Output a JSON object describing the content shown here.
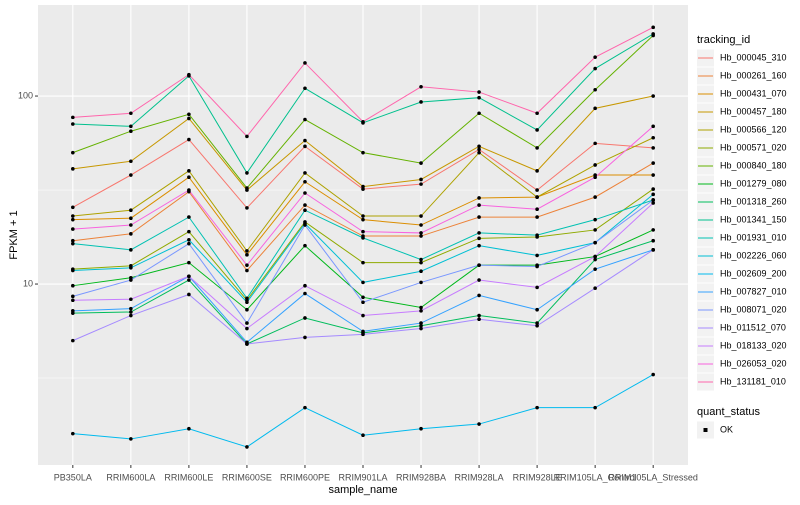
{
  "chart_data": {
    "type": "line",
    "log_y": true,
    "grid": true,
    "x_label": "sample_name",
    "y_label": "FPKM + 1",
    "legend_title": "tracking_id",
    "shape_legend": {
      "title": "quant_status",
      "labels": [
        "OK"
      ]
    },
    "categories": [
      "PB350LA",
      "RRIM600LA",
      "RRIM600LE",
      "RRIM600SE",
      "RRIM600PE",
      "RRIM901LA",
      "RRIM928BA",
      "RRIM928LA",
      "RRIM928LE",
      "RRIM105LA_Control",
      "RRIM105LA_Stressed"
    ],
    "ylim": [
      1.09,
      305
    ],
    "yticks": [
      10,
      100
    ],
    "series": [
      {
        "name": "Hb_000045_310",
        "color": "#F8766D",
        "values": [
          25.6,
          38,
          58.7,
          25.4,
          54,
          32,
          34,
          52,
          31.6,
          56,
          53
        ]
      },
      {
        "name": "Hb_000261_160",
        "color": "#EC8239",
        "values": [
          17,
          18.5,
          31,
          11.8,
          26.3,
          18,
          18,
          22.7,
          22.7,
          29,
          44
        ]
      },
      {
        "name": "Hb_000431_070",
        "color": "#DB8E00",
        "values": [
          22,
          22.4,
          37,
          14.3,
          35,
          22,
          20.6,
          28.7,
          29,
          38,
          38
        ]
      },
      {
        "name": "Hb_000457_180",
        "color": "#C79800",
        "values": [
          41,
          45,
          76,
          31.6,
          58,
          33,
          36,
          54,
          40,
          86,
          100
        ]
      },
      {
        "name": "Hb_000566_120",
        "color": "#AEA200",
        "values": [
          23,
          24.7,
          40,
          15,
          39,
          23,
          23,
          50,
          29,
          43,
          60
        ]
      },
      {
        "name": "Hb_000571_020",
        "color": "#8FAA00",
        "values": [
          12,
          12.5,
          19,
          8.2,
          21.4,
          13,
          13,
          17.5,
          17.8,
          19.4,
          32
        ]
      },
      {
        "name": "Hb_000840_180",
        "color": "#64B200",
        "values": [
          50,
          65,
          80,
          32.4,
          75,
          50,
          44,
          81,
          53,
          108,
          210
        ]
      },
      {
        "name": "Hb_001279_080",
        "color": "#00B81B",
        "values": [
          9.8,
          10.8,
          13,
          7.3,
          16,
          8.5,
          7.5,
          12.6,
          12.6,
          14,
          19.4
        ]
      },
      {
        "name": "Hb_001318_260",
        "color": "#00BD5C",
        "values": [
          7,
          7.1,
          10.5,
          4.8,
          6.6,
          5.5,
          6,
          6.8,
          6.2,
          13.5,
          17
        ]
      },
      {
        "name": "Hb_001341_150",
        "color": "#00C08D",
        "values": [
          71,
          69,
          128,
          39,
          110,
          72,
          93,
          98,
          66,
          140,
          214
        ]
      },
      {
        "name": "Hb_001931_010",
        "color": "#00C1B2",
        "values": [
          16.4,
          15.2,
          22.7,
          8.4,
          24.7,
          17.6,
          13.5,
          18.7,
          18.2,
          22,
          28
        ]
      },
      {
        "name": "Hb_002226_060",
        "color": "#00BFD4",
        "values": [
          11.8,
          12.2,
          17.2,
          8,
          21,
          10.2,
          11.7,
          16,
          14.2,
          16.6,
          30
        ]
      },
      {
        "name": "Hb_002609_200",
        "color": "#00BAEE",
        "values": [
          1.6,
          1.5,
          1.7,
          1.36,
          2.2,
          1.57,
          1.7,
          1.8,
          2.2,
          2.2,
          3.3
        ]
      },
      {
        "name": "Hb_007827_010",
        "color": "#35A2FF",
        "values": [
          7.2,
          7.4,
          11,
          4.9,
          8.9,
          5.6,
          6.2,
          8.7,
          7.3,
          12,
          15.2
        ]
      },
      {
        "name": "Hb_008071_020",
        "color": "#7997FF",
        "values": [
          8.6,
          10.5,
          16.4,
          6.2,
          20.6,
          8,
          10.2,
          12.6,
          12.4,
          16.6,
          28
        ]
      },
      {
        "name": "Hb_011512_070",
        "color": "#A58AFF",
        "values": [
          5,
          6.8,
          8.8,
          4.8,
          5.2,
          5.4,
          5.8,
          6.5,
          6,
          9.5,
          15.2
        ]
      },
      {
        "name": "Hb_018133_020",
        "color": "#C77CFF",
        "values": [
          8.2,
          8.3,
          11,
          5.8,
          9.8,
          6.8,
          7.2,
          10.5,
          9.6,
          14,
          27
        ]
      },
      {
        "name": "Hb_026053_020",
        "color": "#F863DF",
        "values": [
          19.6,
          20.6,
          31.6,
          12.6,
          30.5,
          19,
          18.7,
          26.3,
          25,
          37,
          69
        ]
      },
      {
        "name": "Hb_131181_010",
        "color": "#FF65AC",
        "values": [
          77,
          81,
          130,
          61,
          150,
          73,
          112,
          105,
          81,
          161,
          232
        ]
      }
    ]
  }
}
